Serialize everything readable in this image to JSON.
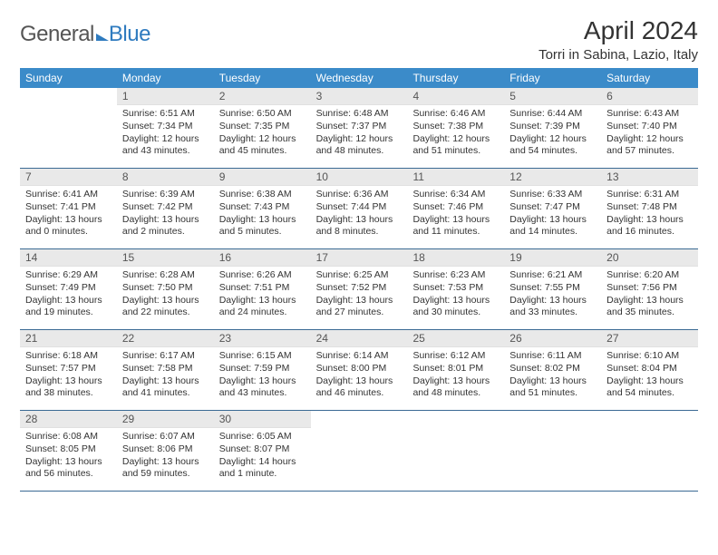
{
  "logo": {
    "part1": "General",
    "part2": "Blue"
  },
  "title": "April 2024",
  "location": "Torri in Sabina, Lazio, Italy",
  "daysOfWeek": [
    "Sunday",
    "Monday",
    "Tuesday",
    "Wednesday",
    "Thursday",
    "Friday",
    "Saturday"
  ],
  "colors": {
    "headerBar": "#3b8bc9",
    "headerText": "#ffffff",
    "dayNumBg": "#e9e9e9",
    "weekBorder": "#3b6a94",
    "logoBlue": "#2f7bbf",
    "textGray": "#555555"
  },
  "weeks": [
    [
      {
        "n": "",
        "sunrise": "",
        "sunset": "",
        "daylight": ""
      },
      {
        "n": "1",
        "sunrise": "Sunrise: 6:51 AM",
        "sunset": "Sunset: 7:34 PM",
        "daylight": "Daylight: 12 hours and 43 minutes."
      },
      {
        "n": "2",
        "sunrise": "Sunrise: 6:50 AM",
        "sunset": "Sunset: 7:35 PM",
        "daylight": "Daylight: 12 hours and 45 minutes."
      },
      {
        "n": "3",
        "sunrise": "Sunrise: 6:48 AM",
        "sunset": "Sunset: 7:37 PM",
        "daylight": "Daylight: 12 hours and 48 minutes."
      },
      {
        "n": "4",
        "sunrise": "Sunrise: 6:46 AM",
        "sunset": "Sunset: 7:38 PM",
        "daylight": "Daylight: 12 hours and 51 minutes."
      },
      {
        "n": "5",
        "sunrise": "Sunrise: 6:44 AM",
        "sunset": "Sunset: 7:39 PM",
        "daylight": "Daylight: 12 hours and 54 minutes."
      },
      {
        "n": "6",
        "sunrise": "Sunrise: 6:43 AM",
        "sunset": "Sunset: 7:40 PM",
        "daylight": "Daylight: 12 hours and 57 minutes."
      }
    ],
    [
      {
        "n": "7",
        "sunrise": "Sunrise: 6:41 AM",
        "sunset": "Sunset: 7:41 PM",
        "daylight": "Daylight: 13 hours and 0 minutes."
      },
      {
        "n": "8",
        "sunrise": "Sunrise: 6:39 AM",
        "sunset": "Sunset: 7:42 PM",
        "daylight": "Daylight: 13 hours and 2 minutes."
      },
      {
        "n": "9",
        "sunrise": "Sunrise: 6:38 AM",
        "sunset": "Sunset: 7:43 PM",
        "daylight": "Daylight: 13 hours and 5 minutes."
      },
      {
        "n": "10",
        "sunrise": "Sunrise: 6:36 AM",
        "sunset": "Sunset: 7:44 PM",
        "daylight": "Daylight: 13 hours and 8 minutes."
      },
      {
        "n": "11",
        "sunrise": "Sunrise: 6:34 AM",
        "sunset": "Sunset: 7:46 PM",
        "daylight": "Daylight: 13 hours and 11 minutes."
      },
      {
        "n": "12",
        "sunrise": "Sunrise: 6:33 AM",
        "sunset": "Sunset: 7:47 PM",
        "daylight": "Daylight: 13 hours and 14 minutes."
      },
      {
        "n": "13",
        "sunrise": "Sunrise: 6:31 AM",
        "sunset": "Sunset: 7:48 PM",
        "daylight": "Daylight: 13 hours and 16 minutes."
      }
    ],
    [
      {
        "n": "14",
        "sunrise": "Sunrise: 6:29 AM",
        "sunset": "Sunset: 7:49 PM",
        "daylight": "Daylight: 13 hours and 19 minutes."
      },
      {
        "n": "15",
        "sunrise": "Sunrise: 6:28 AM",
        "sunset": "Sunset: 7:50 PM",
        "daylight": "Daylight: 13 hours and 22 minutes."
      },
      {
        "n": "16",
        "sunrise": "Sunrise: 6:26 AM",
        "sunset": "Sunset: 7:51 PM",
        "daylight": "Daylight: 13 hours and 24 minutes."
      },
      {
        "n": "17",
        "sunrise": "Sunrise: 6:25 AM",
        "sunset": "Sunset: 7:52 PM",
        "daylight": "Daylight: 13 hours and 27 minutes."
      },
      {
        "n": "18",
        "sunrise": "Sunrise: 6:23 AM",
        "sunset": "Sunset: 7:53 PM",
        "daylight": "Daylight: 13 hours and 30 minutes."
      },
      {
        "n": "19",
        "sunrise": "Sunrise: 6:21 AM",
        "sunset": "Sunset: 7:55 PM",
        "daylight": "Daylight: 13 hours and 33 minutes."
      },
      {
        "n": "20",
        "sunrise": "Sunrise: 6:20 AM",
        "sunset": "Sunset: 7:56 PM",
        "daylight": "Daylight: 13 hours and 35 minutes."
      }
    ],
    [
      {
        "n": "21",
        "sunrise": "Sunrise: 6:18 AM",
        "sunset": "Sunset: 7:57 PM",
        "daylight": "Daylight: 13 hours and 38 minutes."
      },
      {
        "n": "22",
        "sunrise": "Sunrise: 6:17 AM",
        "sunset": "Sunset: 7:58 PM",
        "daylight": "Daylight: 13 hours and 41 minutes."
      },
      {
        "n": "23",
        "sunrise": "Sunrise: 6:15 AM",
        "sunset": "Sunset: 7:59 PM",
        "daylight": "Daylight: 13 hours and 43 minutes."
      },
      {
        "n": "24",
        "sunrise": "Sunrise: 6:14 AM",
        "sunset": "Sunset: 8:00 PM",
        "daylight": "Daylight: 13 hours and 46 minutes."
      },
      {
        "n": "25",
        "sunrise": "Sunrise: 6:12 AM",
        "sunset": "Sunset: 8:01 PM",
        "daylight": "Daylight: 13 hours and 48 minutes."
      },
      {
        "n": "26",
        "sunrise": "Sunrise: 6:11 AM",
        "sunset": "Sunset: 8:02 PM",
        "daylight": "Daylight: 13 hours and 51 minutes."
      },
      {
        "n": "27",
        "sunrise": "Sunrise: 6:10 AM",
        "sunset": "Sunset: 8:04 PM",
        "daylight": "Daylight: 13 hours and 54 minutes."
      }
    ],
    [
      {
        "n": "28",
        "sunrise": "Sunrise: 6:08 AM",
        "sunset": "Sunset: 8:05 PM",
        "daylight": "Daylight: 13 hours and 56 minutes."
      },
      {
        "n": "29",
        "sunrise": "Sunrise: 6:07 AM",
        "sunset": "Sunset: 8:06 PM",
        "daylight": "Daylight: 13 hours and 59 minutes."
      },
      {
        "n": "30",
        "sunrise": "Sunrise: 6:05 AM",
        "sunset": "Sunset: 8:07 PM",
        "daylight": "Daylight: 14 hours and 1 minute."
      },
      {
        "n": "",
        "sunrise": "",
        "sunset": "",
        "daylight": ""
      },
      {
        "n": "",
        "sunrise": "",
        "sunset": "",
        "daylight": ""
      },
      {
        "n": "",
        "sunrise": "",
        "sunset": "",
        "daylight": ""
      },
      {
        "n": "",
        "sunrise": "",
        "sunset": "",
        "daylight": ""
      }
    ]
  ]
}
